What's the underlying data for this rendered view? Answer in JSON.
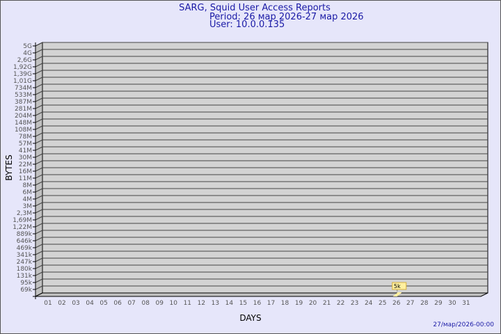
{
  "header": {
    "title": "SARG, Squid User Access Reports",
    "period": "Period: 26 мар 2026-27 мар 2026",
    "user": "User: 10.0.0.135"
  },
  "footer": {
    "timestamp": "27/мар/2026-00:00"
  },
  "chart_data": {
    "type": "bar",
    "title": "SARG, Squid User Access Reports",
    "xlabel": "DAYS",
    "ylabel": "BYTES",
    "categories": [
      "01",
      "02",
      "03",
      "04",
      "05",
      "06",
      "07",
      "08",
      "09",
      "10",
      "11",
      "12",
      "13",
      "14",
      "15",
      "16",
      "17",
      "18",
      "19",
      "20",
      "21",
      "22",
      "23",
      "24",
      "25",
      "26",
      "27",
      "28",
      "29",
      "30",
      "31"
    ],
    "y_tick_labels": [
      "5G",
      "4G",
      "2,6G",
      "1,92G",
      "1,39G",
      "1,01G",
      "734M",
      "533M",
      "387M",
      "281M",
      "204M",
      "148M",
      "108M",
      "78M",
      "57M",
      "41M",
      "30M",
      "22M",
      "16M",
      "11M",
      "8M",
      "6M",
      "4M",
      "3M",
      "2,3M",
      "1,69M",
      "1,22M",
      "889k",
      "646k",
      "469k",
      "341k",
      "247k",
      "180k",
      "131k",
      "95k",
      "69k"
    ],
    "y_scale": "log",
    "grid": true,
    "series": [
      {
        "values": [
          {
            "day": "26",
            "value": "5k"
          }
        ]
      }
    ],
    "colors": {
      "bar": "#fff0a0",
      "bar_edge": "#d4b040",
      "plot_bg": "#d3d3d3",
      "page_bg": "#e6e6fa",
      "title": "#1a1aa6"
    }
  }
}
